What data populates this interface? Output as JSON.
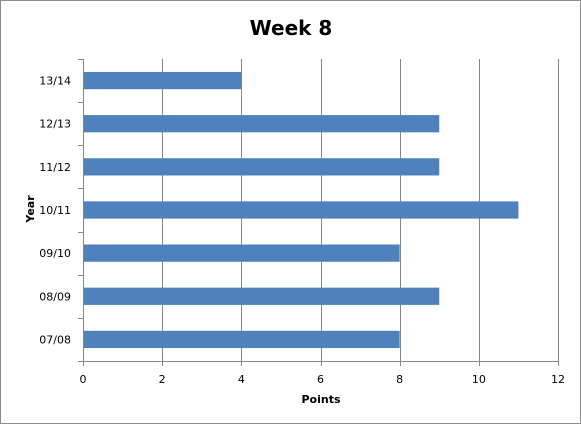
{
  "chart_data": {
    "type": "bar",
    "orientation": "horizontal",
    "title": "Week 8",
    "xlabel": "Points",
    "ylabel": "Year",
    "categories": [
      "07/08",
      "08/09",
      "09/10",
      "10/11",
      "11/12",
      "12/13",
      "13/14"
    ],
    "values": [
      8,
      9,
      8,
      11,
      9,
      9,
      4
    ],
    "xlim": [
      0,
      12
    ],
    "xticks": [
      "0",
      "2",
      "4",
      "6",
      "8",
      "10",
      "12"
    ],
    "grid": "vertical",
    "legend": "none",
    "bar_color": "#4f81bd",
    "grid_color": "#868686"
  }
}
